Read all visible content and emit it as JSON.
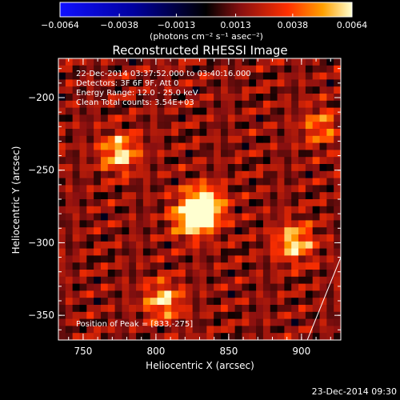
{
  "chart_data": {
    "type": "heatmap",
    "title": "Reconstructed RHESSI Image",
    "xlabel": "Heliocentric X (arcsec)",
    "ylabel": "Heliocentric Y (arcsec)",
    "xlim": [
      733,
      927
    ],
    "ylim": [
      -367,
      -173
    ],
    "xticks": [
      750,
      800,
      850,
      900
    ],
    "yticks": [
      -200,
      -250,
      -300,
      -350
    ],
    "xtick_labels": [
      "750",
      "800",
      "850",
      "900"
    ],
    "ytick_labels": [
      "−200",
      "−250",
      "−300",
      "−350"
    ],
    "colorbar": {
      "min": -0.0064,
      "max": 0.0064,
      "ticks": [
        -0.0064,
        -0.0038,
        -0.0013,
        0.0013,
        0.0038,
        0.0064
      ],
      "tick_labels": [
        "−0.0064",
        "−0.0038",
        "−0.0013",
        "0.0013",
        "0.0038",
        "0.0064"
      ],
      "unit_label": "(photons cm⁻² s⁻¹ asec⁻²)"
    },
    "sources": [
      {
        "x": 833,
        "y": -275,
        "intensity": 0.0064
      },
      {
        "x": 825,
        "y": -283,
        "intensity": 0.0052
      },
      {
        "x": 775,
        "y": -238,
        "intensity": 0.0045
      },
      {
        "x": 895,
        "y": -300,
        "intensity": 0.0045
      },
      {
        "x": 805,
        "y": -340,
        "intensity": 0.004
      },
      {
        "x": 913,
        "y": -220,
        "intensity": 0.0028
      }
    ],
    "info_lines": [
      "22-Dec-2014 03:37:52.000 to 03:40:16.000",
      "Detectors: 3F 6F 9F, Att 0",
      "Energy Range: 12.0 - 25.0 keV",
      "Clean     Total counts: 3.54E+03"
    ],
    "peak_label": "Position of Peak = [833,-275]",
    "limb_arc": [
      [
        904,
        -367
      ],
      [
        927,
        -310
      ]
    ]
  },
  "footer": {
    "timestamp": "23-Dec-2014 09:30"
  }
}
